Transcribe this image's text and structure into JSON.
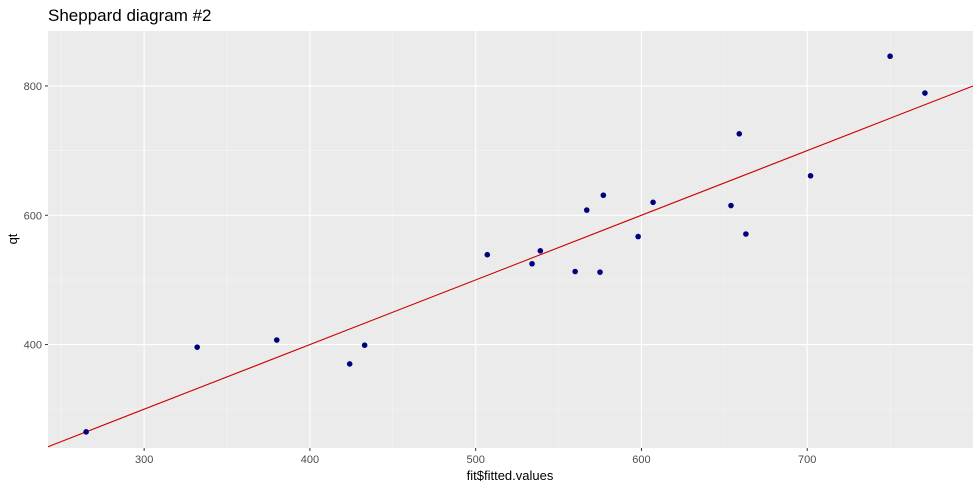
{
  "chart_data": {
    "type": "scatter",
    "title": "Sheppard diagram #2",
    "xlabel": "fit$fitted.values",
    "ylabel": "qt",
    "xlim": [
      242,
      800
    ],
    "ylim": [
      240,
      885
    ],
    "x_ticks": [
      300,
      400,
      500,
      600,
      700
    ],
    "y_ticks": [
      400,
      600,
      800
    ],
    "x_tick_labels": [
      "300",
      "400",
      "500",
      "600",
      "700"
    ],
    "y_tick_labels": [
      "400",
      "600",
      "800"
    ],
    "grid": true,
    "legend": "none",
    "points": [
      {
        "x": 265,
        "y": 265
      },
      {
        "x": 332,
        "y": 396
      },
      {
        "x": 380,
        "y": 407
      },
      {
        "x": 424,
        "y": 370
      },
      {
        "x": 433,
        "y": 399
      },
      {
        "x": 507,
        "y": 539
      },
      {
        "x": 534,
        "y": 525
      },
      {
        "x": 539,
        "y": 545
      },
      {
        "x": 560,
        "y": 513
      },
      {
        "x": 567,
        "y": 608
      },
      {
        "x": 575,
        "y": 512
      },
      {
        "x": 577,
        "y": 631
      },
      {
        "x": 598,
        "y": 567
      },
      {
        "x": 607,
        "y": 620
      },
      {
        "x": 654,
        "y": 615
      },
      {
        "x": 659,
        "y": 726
      },
      {
        "x": 663,
        "y": 571
      },
      {
        "x": 702,
        "y": 661
      },
      {
        "x": 750,
        "y": 846
      },
      {
        "x": 771,
        "y": 789
      }
    ],
    "reference_line": {
      "slope": 1,
      "intercept": 0
    },
    "colors": {
      "points": "#000080",
      "line": "#cc0000",
      "panel": "#ebebeb",
      "grid_major": "#ffffff",
      "grid_minor": "#f5f5f5"
    }
  }
}
